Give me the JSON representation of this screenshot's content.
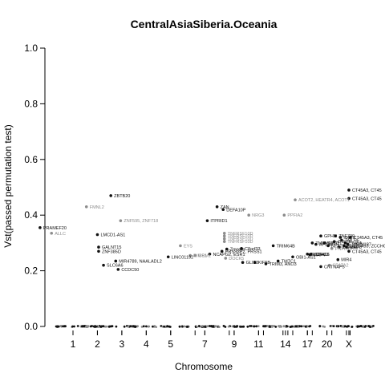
{
  "chart_data": {
    "type": "scatter",
    "title": "CentralAsiaSiberia.Oceania",
    "xlabel": "Chromosome",
    "ylabel": "Vst(passed permutation test)",
    "ylim": [
      0,
      1
    ],
    "yticks": [
      0.0,
      0.2,
      0.4,
      0.6,
      0.8,
      1.0
    ],
    "ytick_labels": [
      "0.0",
      "0.2",
      "0.4",
      "0.6",
      "0.8",
      "1.0"
    ],
    "xticks": [
      {
        "label": "1",
        "pos": 1
      },
      {
        "label": "2",
        "pos": 2
      },
      {
        "label": "3",
        "pos": 3
      },
      {
        "label": "4",
        "pos": 4
      },
      {
        "label": "5",
        "pos": 5
      },
      {
        "label": "7",
        "pos": 6.4
      },
      {
        "label": "9",
        "pos": 7.6
      },
      {
        "label": "11",
        "pos": 8.6
      },
      {
        "label": "14",
        "pos": 9.7
      },
      {
        "label": "17",
        "pos": 10.6
      },
      {
        "label": "20",
        "pos": 11.4
      },
      {
        "label": "X",
        "pos": 12.3
      }
    ],
    "xlim": [
      -0.55,
      13.0
    ],
    "colors": {
      "dark": "#111111",
      "light": "#8c8c8c"
    },
    "points": [
      {
        "x": -0.35,
        "y": 0.355,
        "label": "PRAMEF20",
        "color": "dark"
      },
      {
        "x": 0.12,
        "y": 0.335,
        "label": "ALLC",
        "color": "light"
      },
      {
        "x": 1.55,
        "y": 0.43,
        "label": "FMNL2",
        "color": "light"
      },
      {
        "x": 2.0,
        "y": 0.33,
        "label": "LMCD1-AS1",
        "color": "dark"
      },
      {
        "x": 2.05,
        "y": 0.285,
        "label": "GALNT15",
        "color": "dark"
      },
      {
        "x": 2.05,
        "y": 0.27,
        "label": "ZNF385D",
        "color": "dark"
      },
      {
        "x": 2.25,
        "y": 0.22,
        "label": "SLC6A6",
        "color": "dark"
      },
      {
        "x": 2.55,
        "y": 0.47,
        "label": "ZBTB20",
        "color": "dark"
      },
      {
        "x": 2.75,
        "y": 0.235,
        "label": "MIR4789, NAALADL2",
        "color": "dark"
      },
      {
        "x": 2.85,
        "y": 0.205,
        "label": "CCDC50",
        "color": "dark"
      },
      {
        "x": 2.95,
        "y": 0.38,
        "label": "ZNF595, ZNF718",
        "color": "light"
      },
      {
        "x": 4.9,
        "y": 0.25,
        "label": "LINC01192",
        "color": "dark"
      },
      {
        "x": 5.4,
        "y": 0.29,
        "label": "EYS",
        "color": "light"
      },
      {
        "x": 5.8,
        "y": 0.255,
        "label": "RIMS1",
        "color": "light"
      },
      {
        "x": 6.0,
        "y": 0.255,
        "label": "GRM1",
        "color": "light"
      },
      {
        "x": 6.5,
        "y": 0.38,
        "label": "ITPRID1",
        "color": "dark"
      },
      {
        "x": 6.6,
        "y": 0.26,
        "label": "NCAPG2, ESR1",
        "color": "dark"
      },
      {
        "x": 6.9,
        "y": 0.43,
        "label": "ZAN",
        "color": "dark"
      },
      {
        "x": 7.15,
        "y": 0.42,
        "label": "DEFA10P",
        "color": "dark"
      },
      {
        "x": 7.2,
        "y": 0.335,
        "label": "TNFRSF10D",
        "color": "light"
      },
      {
        "x": 7.2,
        "y": 0.325,
        "label": "TNFRSF10D",
        "color": "light"
      },
      {
        "x": 7.2,
        "y": 0.315,
        "label": "TNFRSF10D",
        "color": "light"
      },
      {
        "x": 7.2,
        "y": 0.305,
        "label": "TNFRSF10D",
        "color": "light"
      },
      {
        "x": 7.1,
        "y": 0.27,
        "label": "PRSS3P2, PRSS1",
        "color": "dark"
      },
      {
        "x": 7.25,
        "y": 0.245,
        "label": "DOCK5",
        "color": "light"
      },
      {
        "x": 7.3,
        "y": 0.278,
        "label": "Zmpste",
        "color": "dark"
      },
      {
        "x": 7.9,
        "y": 0.28,
        "label": "C8orf33",
        "color": "dark"
      },
      {
        "x": 7.95,
        "y": 0.23,
        "label": "GLIS3",
        "color": "dark"
      },
      {
        "x": 8.2,
        "y": 0.4,
        "label": "NRG3",
        "color": "light"
      },
      {
        "x": 8.45,
        "y": 0.23,
        "label": "KIF5B",
        "color": "dark"
      },
      {
        "x": 8.9,
        "y": 0.225,
        "label": "TRIM3, ANO3",
        "color": "dark"
      },
      {
        "x": 9.2,
        "y": 0.29,
        "label": "TRIM64B",
        "color": "dark"
      },
      {
        "x": 9.4,
        "y": 0.235,
        "label": "TMTC1",
        "color": "dark"
      },
      {
        "x": 9.65,
        "y": 0.4,
        "label": "PPFIA2",
        "color": "light"
      },
      {
        "x": 10.0,
        "y": 0.25,
        "label": "OBI1-AS1",
        "color": "dark"
      },
      {
        "x": 10.1,
        "y": 0.455,
        "label": "ACOT2, HEATR4, ACOT1",
        "color": "light"
      },
      {
        "x": 10.6,
        "y": 0.26,
        "label": "SLC6A16",
        "color": "dark"
      },
      {
        "x": 10.75,
        "y": 0.26,
        "label": "CDH13",
        "color": "dark"
      },
      {
        "x": 10.8,
        "y": 0.3,
        "label": "TMEM132C",
        "color": "dark"
      },
      {
        "x": 11.15,
        "y": 0.325,
        "label": "GPHN",
        "color": "dark"
      },
      {
        "x": 11.15,
        "y": 0.215,
        "label": "CNTNAP5",
        "color": "dark"
      },
      {
        "x": 11.3,
        "y": 0.3,
        "label": "SPG21",
        "color": "dark"
      },
      {
        "x": 11.45,
        "y": 0.29,
        "label": "NFAT5",
        "color": "dark"
      },
      {
        "x": 11.6,
        "y": 0.28,
        "label": "PNPLA6",
        "color": "light"
      },
      {
        "x": 11.5,
        "y": 0.22,
        "label": "SPATA2",
        "color": "light"
      },
      {
        "x": 11.7,
        "y": 0.305,
        "label": "ZNF26",
        "color": "dark"
      },
      {
        "x": 11.75,
        "y": 0.325,
        "label": "ZNF700",
        "color": "dark"
      },
      {
        "x": 11.85,
        "y": 0.24,
        "label": "MIR4",
        "color": "dark"
      },
      {
        "x": 11.9,
        "y": 0.285,
        "label": "ZNF880",
        "color": "dark"
      },
      {
        "x": 12.0,
        "y": 0.31,
        "label": "TMLHE",
        "color": "dark"
      },
      {
        "x": 12.15,
        "y": 0.3,
        "label": "CT45A",
        "color": "dark"
      },
      {
        "x": 12.3,
        "y": 0.27,
        "label": "CT45A3, CT45",
        "color": "dark"
      },
      {
        "x": 12.3,
        "y": 0.46,
        "label": "CT45A3, CT45",
        "color": "dark"
      },
      {
        "x": 12.3,
        "y": 0.49,
        "label": "CT45A3, CT45",
        "color": "dark"
      },
      {
        "x": 12.35,
        "y": 0.32,
        "label": "CT45A3, CT45",
        "color": "dark"
      },
      {
        "x": 12.1,
        "y": 0.29,
        "label": "SLC25A53, ZCCHC18",
        "color": "dark"
      },
      {
        "x": 12.25,
        "y": 0.295,
        "label": "TMEM187",
        "color": "dark"
      },
      {
        "x": 12.2,
        "y": 0.285,
        "label": "MAP8",
        "color": "dark"
      },
      {
        "x": 11.95,
        "y": 0.32,
        "label": "XKRX",
        "color": "dark"
      },
      {
        "x": 10.95,
        "y": 0.295,
        "label": "AP2A2",
        "color": "dark"
      },
      {
        "x": 10.7,
        "y": 0.258,
        "label": "MAP4",
        "color": "dark"
      }
    ],
    "baseline": {
      "y": 0.0
    }
  }
}
